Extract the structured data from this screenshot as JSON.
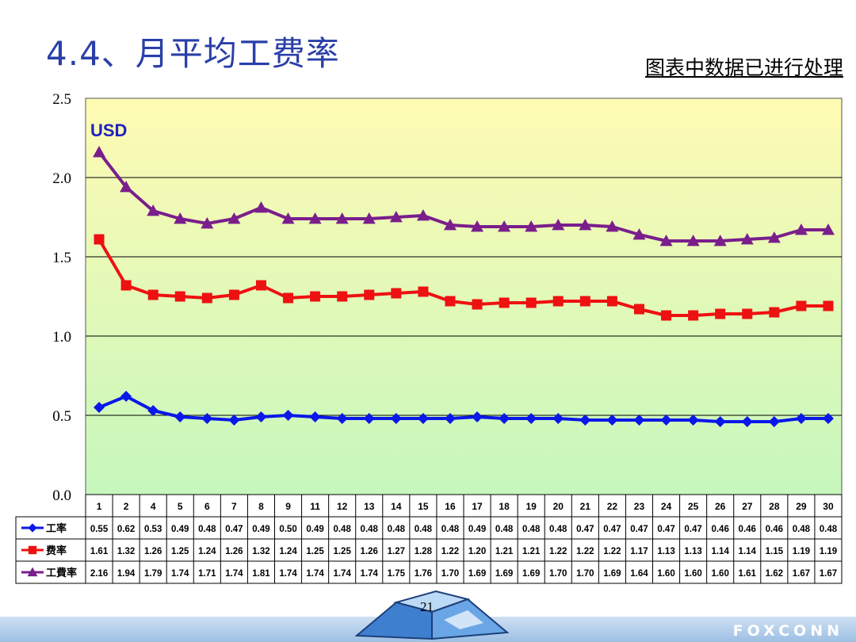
{
  "slide": {
    "title": "4.4、月平均工费率",
    "note": "图表中数据已进行处理",
    "page_number": "21",
    "brand": "FOXCONN"
  },
  "colors": {
    "title": "#2a3fa8",
    "plot_top": "#fffbb3",
    "plot_bottom": "#c6f7bd",
    "usd": "#2020c0"
  },
  "chart_data": {
    "type": "line",
    "unit_label": "USD",
    "categories": [
      "1",
      "2",
      "4",
      "5",
      "6",
      "7",
      "8",
      "9",
      "11",
      "12",
      "13",
      "14",
      "15",
      "16",
      "17",
      "18",
      "19",
      "20",
      "21",
      "22",
      "23",
      "24",
      "25",
      "26",
      "27",
      "28",
      "29",
      "30"
    ],
    "ylim": [
      0,
      2.5
    ],
    "yticks": [
      "0.0",
      "0.5",
      "1.0",
      "1.5",
      "2.0",
      "2.5"
    ],
    "ytick_values": [
      0,
      0.5,
      1.0,
      1.5,
      2.0,
      2.5
    ],
    "grid": true,
    "legend": "data-table",
    "series": [
      {
        "name": "工率",
        "color": "#0a18e8",
        "marker": "diamond",
        "values": [
          0.55,
          0.62,
          0.53,
          0.49,
          0.48,
          0.47,
          0.49,
          0.5,
          0.49,
          0.48,
          0.48,
          0.48,
          0.48,
          0.48,
          0.49,
          0.48,
          0.48,
          0.48,
          0.47,
          0.47,
          0.47,
          0.47,
          0.47,
          0.46,
          0.46,
          0.46,
          0.48,
          0.48
        ],
        "labels": [
          "0.55",
          "0.62",
          "0.53",
          "0.49",
          "0.48",
          "0.47",
          "0.49",
          "0.50",
          "0.49",
          "0.48",
          "0.48",
          "0.48",
          "0.48",
          "0.48",
          "0.49",
          "0.48",
          "0.48",
          "0.48",
          "0.47",
          "0.47",
          "0.47",
          "0.47",
          "0.47",
          "0.46",
          "0.46",
          "0.46",
          "0.48",
          "0.48"
        ]
      },
      {
        "name": "费率",
        "color": "#ee1111",
        "marker": "square",
        "values": [
          1.61,
          1.32,
          1.26,
          1.25,
          1.24,
          1.26,
          1.32,
          1.24,
          1.25,
          1.25,
          1.26,
          1.27,
          1.28,
          1.22,
          1.2,
          1.21,
          1.21,
          1.22,
          1.22,
          1.22,
          1.17,
          1.13,
          1.13,
          1.14,
          1.14,
          1.15,
          1.19,
          1.19
        ],
        "labels": [
          "1.61",
          "1.32",
          "1.26",
          "1.25",
          "1.24",
          "1.26",
          "1.32",
          "1.24",
          "1.25",
          "1.25",
          "1.26",
          "1.27",
          "1.28",
          "1.22",
          "1.20",
          "1.21",
          "1.21",
          "1.22",
          "1.22",
          "1.22",
          "1.17",
          "1.13",
          "1.13",
          "1.14",
          "1.14",
          "1.15",
          "1.19",
          "1.19"
        ]
      },
      {
        "name": "工費率",
        "color": "#7a1e8c",
        "marker": "triangle",
        "values": [
          2.16,
          1.94,
          1.79,
          1.74,
          1.71,
          1.74,
          1.81,
          1.74,
          1.74,
          1.74,
          1.74,
          1.75,
          1.76,
          1.7,
          1.69,
          1.69,
          1.69,
          1.7,
          1.7,
          1.69,
          1.64,
          1.6,
          1.6,
          1.6,
          1.61,
          1.62,
          1.67,
          1.67
        ],
        "labels": [
          "2.16",
          "1.94",
          "1.79",
          "1.74",
          "1.71",
          "1.74",
          "1.81",
          "1.74",
          "1.74",
          "1.74",
          "1.74",
          "1.75",
          "1.76",
          "1.70",
          "1.69",
          "1.69",
          "1.69",
          "1.70",
          "1.70",
          "1.69",
          "1.64",
          "1.60",
          "1.60",
          "1.60",
          "1.61",
          "1.62",
          "1.67",
          "1.67"
        ]
      }
    ]
  }
}
